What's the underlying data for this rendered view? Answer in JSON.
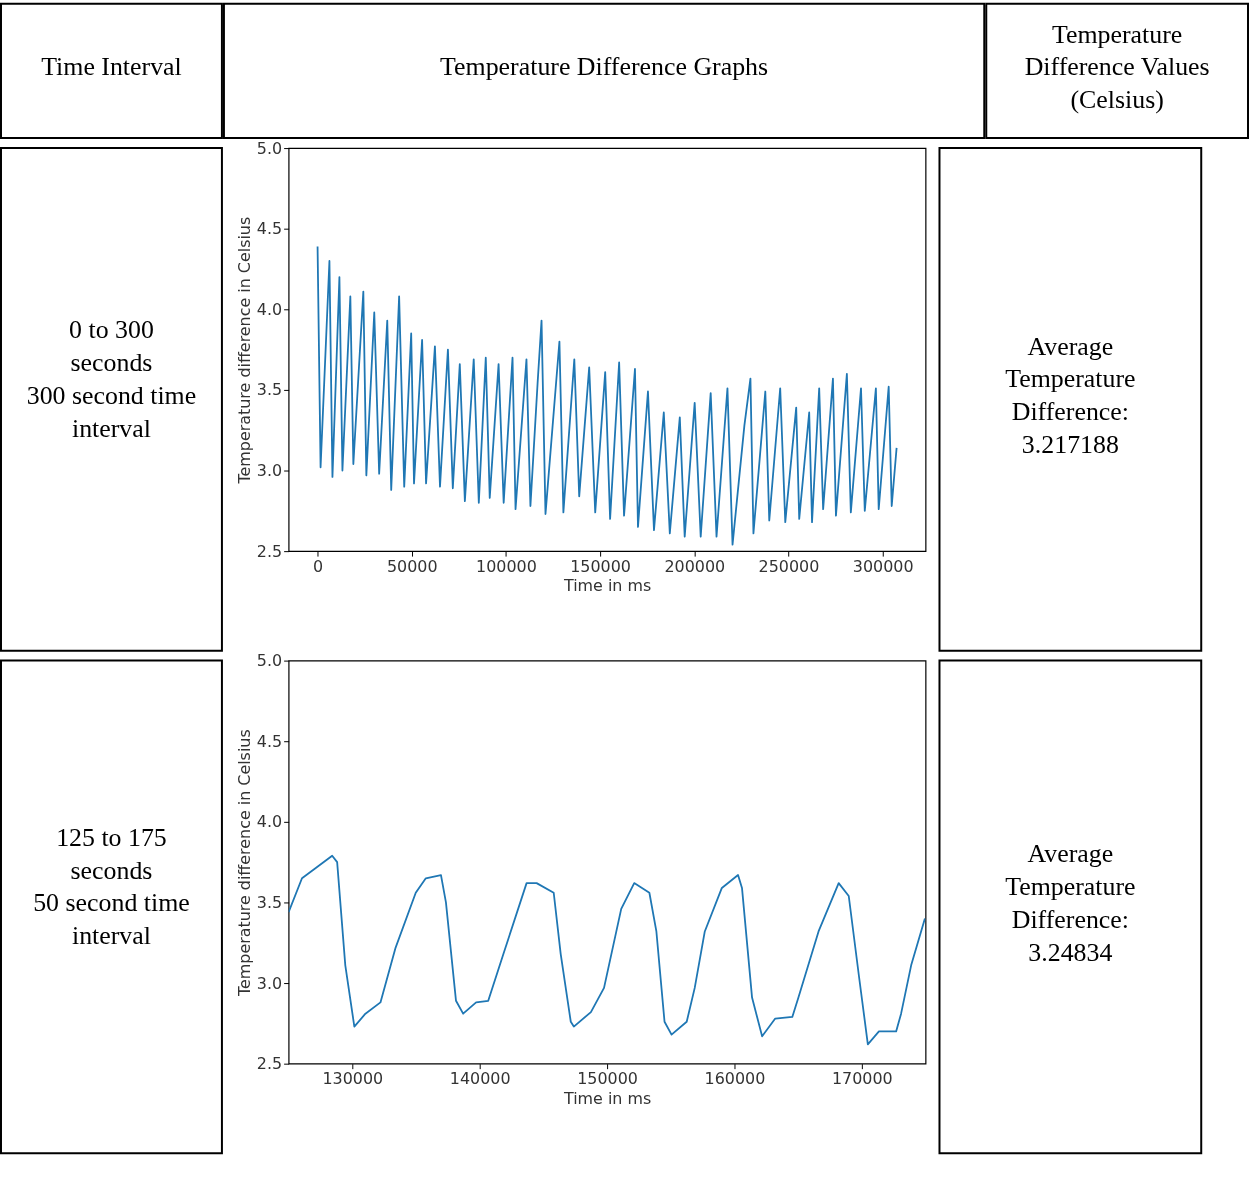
{
  "chart_data": [
    {
      "type": "other",
      "annotations": [
        "Time Interval",
        "Temperature Difference Graphs",
        "Temperature Difference Values (Celsius)"
      ]
    },
    {
      "type": "line",
      "xlabel": "Time in ms",
      "ylabel": "Temperature difference in Celsius",
      "color": "#1f77b4",
      "grid": false,
      "annotations": [
        "0 to 300 seconds",
        "300 second time interval",
        "Average Temperature Difference: 3.217188"
      ],
      "xlim": [
        -15370,
        322770
      ],
      "xticks": [
        0,
        50000,
        100000,
        150000,
        200000,
        250000,
        300000
      ],
      "ylim": [
        2.5,
        5.0
      ],
      "yticks": [
        2.5,
        {
          "value": 3,
          "label": "3.0"
        },
        3.5,
        {
          "value": 4,
          "label": "4.0"
        },
        4.5,
        {
          "value": 5,
          "label": "5.0"
        }
      ],
      "x": [
        0,
        1600,
        6300,
        7900,
        11600,
        13200,
        17400,
        19000,
        24300,
        25900,
        30100,
        32700,
        37000,
        39100,
        43300,
        46000,
        49700,
        51200,
        55500,
        57600,
        62300,
        65000,
        69200,
        71800,
        75500,
        78200,
        82900,
        85600,
        89300,
        91400,
        96100,
        98800,
        103500,
        105100,
        110900,
        113000,
        116800,
        118900,
        121000,
        128400,
        130500,
        136300,
        138900,
        144200,
        147400,
        152700,
        155300,
        160100,
        162700,
        168500,
        170100,
        175400,
        178600,
        183800,
        187000,
        192300,
        194900,
        200200,
        203400,
        208700,
        211800,
        217600,
        220300,
        226600,
        229800,
        231400,
        237700,
        239800,
        245600,
        248300,
        254100,
        255700,
        261000,
        262500,
        266300,
        268400,
        273600,
        275200,
        281000,
        283100,
        288500,
        290500,
        296400,
        297900,
        303200,
        304800,
        307400
      ],
      "values": [
        4.39,
        3.02,
        4.3,
        2.96,
        4.2,
        3.0,
        4.08,
        3.04,
        4.11,
        2.97,
        3.98,
        2.98,
        3.93,
        2.88,
        4.08,
        2.9,
        3.85,
        2.92,
        3.81,
        2.92,
        3.77,
        2.9,
        3.75,
        2.89,
        3.66,
        2.81,
        3.69,
        2.8,
        3.7,
        2.83,
        3.66,
        2.8,
        3.7,
        2.76,
        3.69,
        2.78,
        3.54,
        3.93,
        2.73,
        3.8,
        2.74,
        3.69,
        2.84,
        3.64,
        2.74,
        3.61,
        2.7,
        3.67,
        2.72,
        3.63,
        2.65,
        3.49,
        2.63,
        3.36,
        2.61,
        3.33,
        2.59,
        3.42,
        2.59,
        3.48,
        2.59,
        3.51,
        2.54,
        3.28,
        3.57,
        2.61,
        3.49,
        2.69,
        3.51,
        2.68,
        3.39,
        2.7,
        3.36,
        2.68,
        3.51,
        2.76,
        3.57,
        2.72,
        3.6,
        2.74,
        3.51,
        2.75,
        3.51,
        2.76,
        3.52,
        2.78,
        3.14
      ]
    },
    {
      "type": "line",
      "xlabel": "Time in ms",
      "ylabel": "Temperature difference in Celsius",
      "color": "#1f77b4",
      "grid": false,
      "annotations": [
        "125 to 175 seconds",
        "50 second time interval",
        "Average Temperature Difference: 3.24834"
      ],
      "xlim": [
        125000,
        175000
      ],
      "xticks": [
        130000,
        140000,
        150000,
        160000,
        170000
      ],
      "ylim": [
        2.5,
        5.0
      ],
      "yticks": [
        2.5,
        {
          "value": 3,
          "label": "3.0"
        },
        3.5,
        {
          "value": 4,
          "label": "4.0"
        },
        4.5,
        {
          "value": 5,
          "label": "5.0"
        }
      ],
      "x": [
        125000,
        126050,
        127080,
        128420,
        128810,
        129450,
        130160,
        131030,
        132210,
        133400,
        134980,
        135770,
        136960,
        137350,
        138140,
        138700,
        139720,
        140670,
        141860,
        143680,
        144470,
        145810,
        146360,
        147150,
        147390,
        148730,
        149760,
        151110,
        152130,
        153320,
        153870,
        154510,
        155060,
        156250,
        156880,
        157670,
        159010,
        160280,
        160590,
        161380,
        162170,
        163200,
        164540,
        165020,
        166600,
        168180,
        168970,
        169760,
        170470,
        171340,
        172690,
        173080,
        173870,
        174950
      ],
      "values": [
        3.44,
        3.65,
        3.71,
        3.79,
        3.75,
        3.11,
        2.73,
        2.81,
        2.88,
        3.22,
        3.56,
        3.65,
        3.67,
        3.5,
        2.89,
        2.81,
        2.88,
        2.89,
        3.18,
        3.62,
        3.62,
        3.56,
        3.18,
        2.76,
        2.73,
        2.82,
        2.97,
        3.46,
        3.62,
        3.56,
        3.32,
        2.76,
        2.68,
        2.76,
        2.97,
        3.32,
        3.59,
        3.67,
        3.59,
        2.91,
        2.67,
        2.78,
        2.79,
        2.91,
        3.32,
        3.62,
        3.54,
        3.05,
        2.62,
        2.7,
        2.7,
        2.81,
        3.11,
        3.4
      ]
    }
  ]
}
